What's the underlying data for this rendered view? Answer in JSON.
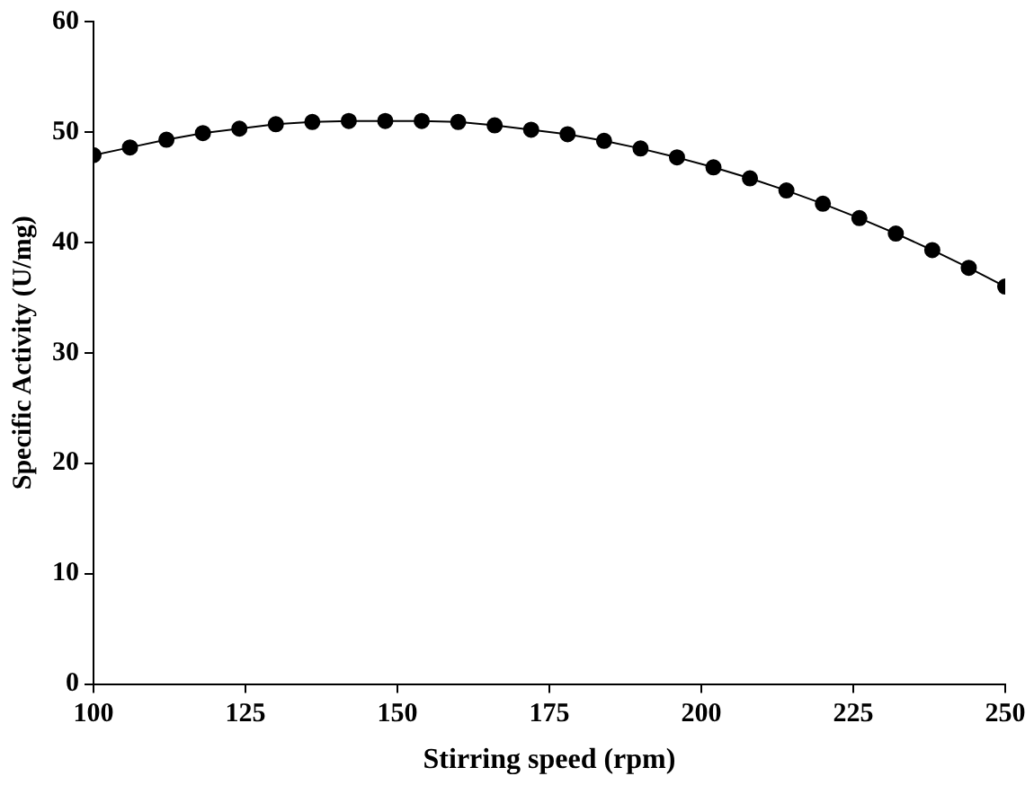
{
  "chart_data": {
    "type": "line",
    "xlabel": "Stirring speed (rpm)",
    "ylabel": "Specific Activity (U/mg)",
    "x": [
      100,
      106,
      112,
      118,
      124,
      130,
      136,
      142,
      148,
      154,
      160,
      166,
      172,
      178,
      184,
      190,
      196,
      202,
      208,
      214,
      220,
      226,
      232,
      238,
      244,
      250
    ],
    "series": [
      {
        "color": "#000000",
        "values": [
          47.9,
          48.6,
          49.3,
          49.9,
          50.3,
          50.7,
          50.9,
          51.0,
          51.0,
          51.0,
          50.9,
          50.6,
          50.2,
          49.8,
          49.2,
          48.5,
          47.7,
          46.8,
          45.8,
          44.7,
          43.5,
          42.2,
          40.8,
          39.3,
          37.7,
          36.0
        ]
      }
    ],
    "xlim": [
      100,
      250
    ],
    "xticks": [
      100,
      125,
      150,
      175,
      200,
      225,
      250
    ],
    "ylim": [
      0,
      60
    ],
    "yticks": [
      0,
      10,
      20,
      30,
      40,
      50,
      60
    ],
    "grid": false,
    "legend": false,
    "marker": "circle",
    "line_style": "solid"
  }
}
